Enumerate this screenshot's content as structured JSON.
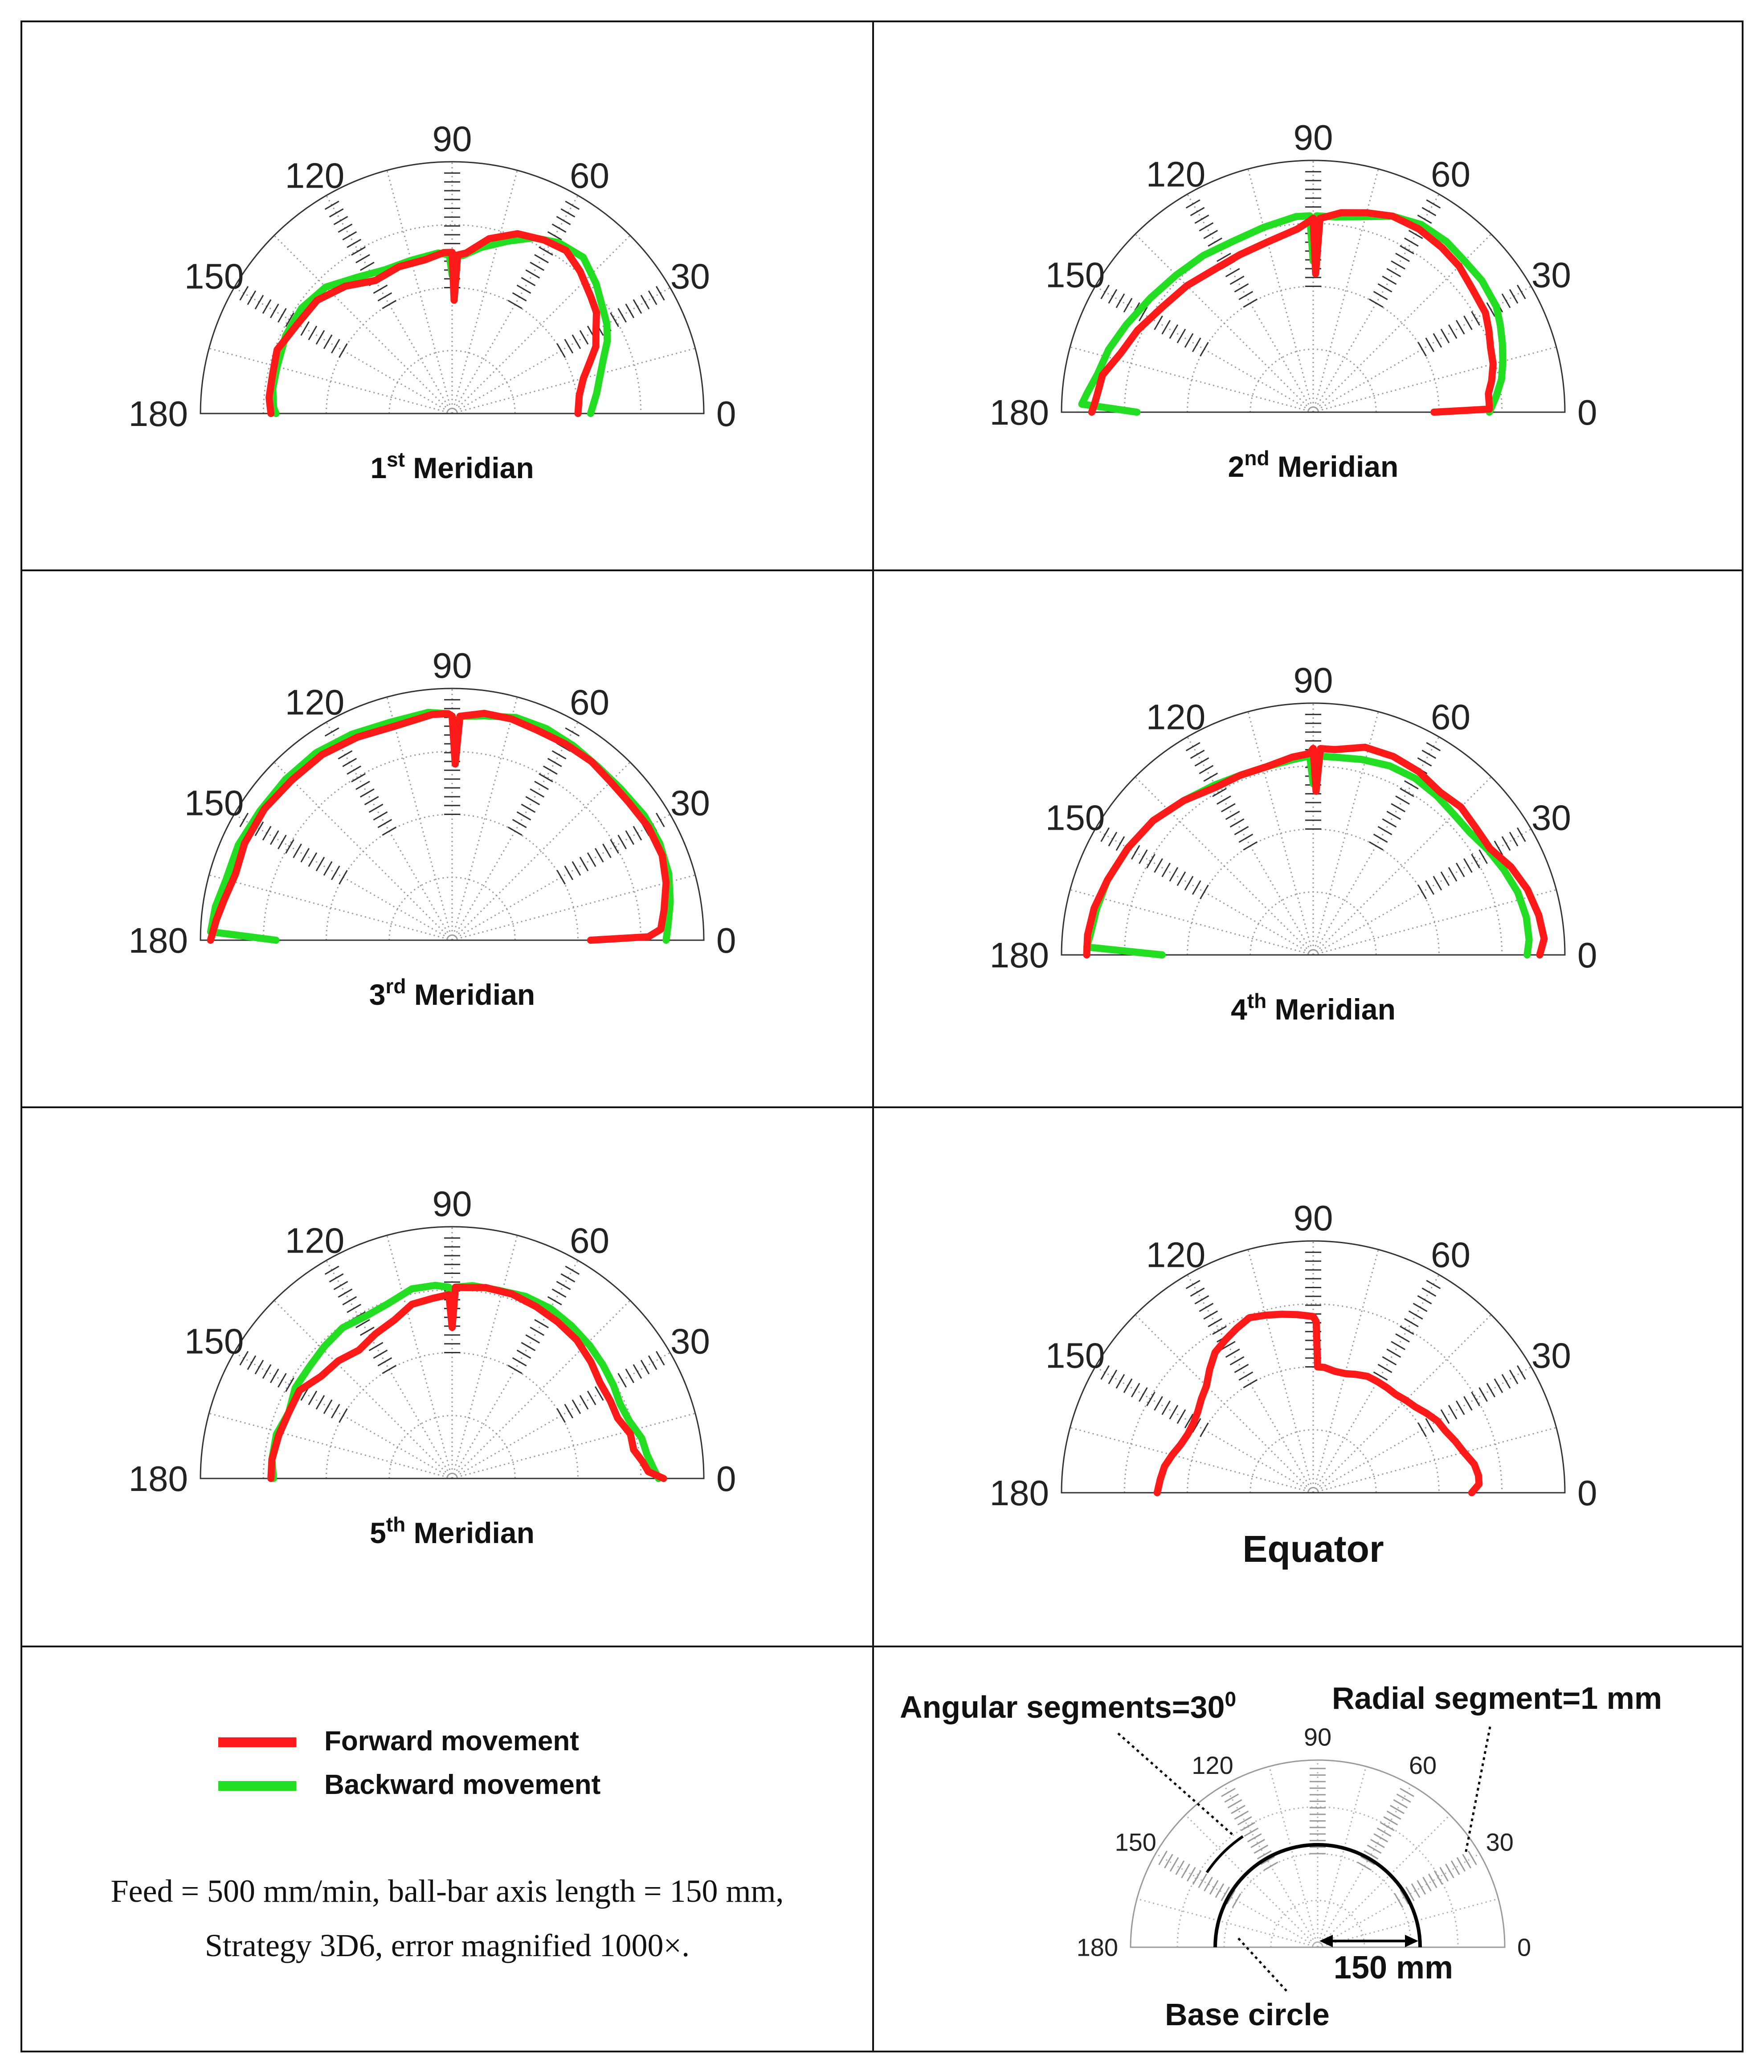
{
  "angle_labels": [
    "0",
    "30",
    "60",
    "90",
    "120",
    "150",
    "180"
  ],
  "colors": {
    "forward": "#ff1a1a",
    "backward": "#22dd22",
    "grid": "#9a9a9a",
    "frame": "#111111"
  },
  "chart_data": [
    {
      "type": "polar-line",
      "title_main": "1",
      "title_sup": "st",
      "title_rest": " Meridian",
      "theta_range": [
        0,
        180
      ],
      "r_range": [
        0,
        1
      ],
      "series": [
        {
          "name": "Forward movement",
          "theta": [
            0,
            8,
            15,
            20,
            25,
            30,
            35,
            40,
            48,
            55,
            62,
            70,
            78,
            85,
            88,
            89,
            90,
            91,
            93,
            100,
            110,
            120,
            130,
            140,
            150,
            160,
            168,
            175,
            180
          ],
          "r": [
            0.5,
            0.51,
            0.54,
            0.58,
            0.63,
            0.66,
            0.7,
            0.72,
            0.76,
            0.79,
            0.78,
            0.76,
            0.71,
            0.64,
            0.63,
            0.45,
            0.64,
            0.64,
            0.64,
            0.62,
            0.62,
            0.61,
            0.66,
            0.7,
            0.71,
            0.74,
            0.73,
            0.73,
            0.72
          ]
        },
        {
          "name": "Backward movement",
          "theta": [
            0,
            8,
            15,
            20,
            25,
            30,
            35,
            42,
            50,
            58,
            65,
            72,
            80,
            86,
            89,
            90,
            91,
            95,
            105,
            115,
            125,
            135,
            145,
            155,
            165,
            172,
            178,
            180
          ],
          "r": [
            0.55,
            0.58,
            0.61,
            0.64,
            0.68,
            0.71,
            0.73,
            0.77,
            0.81,
            0.8,
            0.77,
            0.72,
            0.67,
            0.63,
            0.62,
            0.55,
            0.63,
            0.64,
            0.63,
            0.63,
            0.66,
            0.71,
            0.73,
            0.73,
            0.72,
            0.72,
            0.71,
            0.7
          ]
        }
      ]
    },
    {
      "type": "polar-line",
      "title_main": "2",
      "title_sup": "nd",
      "title_rest": " Meridian",
      "theta_range": [
        0,
        180
      ],
      "r_range": [
        0,
        1
      ],
      "series": [
        {
          "name": "Forward movement",
          "theta": [
            0,
            1,
            3,
            6,
            10,
            15,
            20,
            25,
            30,
            38,
            45,
            52,
            60,
            68,
            75,
            82,
            88,
            89,
            90,
            91,
            95,
            105,
            115,
            125,
            135,
            145,
            155,
            163,
            170,
            175,
            178,
            180
          ],
          "r": [
            0.48,
            0.7,
            0.7,
            0.7,
            0.72,
            0.74,
            0.75,
            0.77,
            0.79,
            0.8,
            0.82,
            0.83,
            0.84,
            0.84,
            0.82,
            0.8,
            0.77,
            0.55,
            0.77,
            0.76,
            0.73,
            0.7,
            0.69,
            0.69,
            0.71,
            0.73,
            0.77,
            0.8,
            0.85,
            0.86,
            0.87,
            0.88
          ]
        },
        {
          "name": "Backward movement",
          "theta": [
            0,
            5,
            10,
            15,
            20,
            25,
            30,
            38,
            45,
            52,
            60,
            68,
            76,
            84,
            89,
            90,
            91,
            95,
            105,
            115,
            125,
            135,
            145,
            155,
            163,
            170,
            175,
            178,
            180
          ],
          "r": [
            0.7,
            0.73,
            0.76,
            0.78,
            0.8,
            0.82,
            0.84,
            0.85,
            0.85,
            0.86,
            0.86,
            0.84,
            0.8,
            0.78,
            0.78,
            0.6,
            0.78,
            0.78,
            0.76,
            0.75,
            0.76,
            0.77,
            0.79,
            0.82,
            0.85,
            0.87,
            0.9,
            0.92,
            0.7
          ]
        }
      ]
    },
    {
      "type": "polar-line",
      "title_main": "3",
      "title_sup": "rd",
      "title_rest": " Meridian",
      "theta_range": [
        0,
        180
      ],
      "r_range": [
        0,
        1
      ],
      "series": [
        {
          "name": "Forward movement",
          "theta": [
            0,
            1,
            3,
            8,
            15,
            22,
            30,
            38,
            45,
            52,
            60,
            68,
            75,
            82,
            88,
            89,
            90,
            91,
            95,
            105,
            115,
            125,
            135,
            145,
            155,
            163,
            170,
            175,
            180
          ],
          "r": [
            0.55,
            0.78,
            0.83,
            0.85,
            0.88,
            0.9,
            0.9,
            0.89,
            0.89,
            0.9,
            0.9,
            0.9,
            0.91,
            0.91,
            0.89,
            0.7,
            0.89,
            0.9,
            0.9,
            0.88,
            0.89,
            0.9,
            0.9,
            0.91,
            0.91,
            0.9,
            0.92,
            0.94,
            0.96
          ]
        },
        {
          "name": "Backward movement",
          "theta": [
            0,
            4,
            10,
            17,
            25,
            33,
            42,
            50,
            58,
            66,
            74,
            82,
            88,
            89,
            90,
            91,
            96,
            106,
            116,
            126,
            136,
            146,
            156,
            165,
            172,
            178,
            180
          ],
          "r": [
            0.85,
            0.86,
            0.88,
            0.9,
            0.91,
            0.91,
            0.9,
            0.9,
            0.91,
            0.92,
            0.92,
            0.9,
            0.89,
            0.75,
            0.89,
            0.9,
            0.91,
            0.9,
            0.91,
            0.92,
            0.92,
            0.92,
            0.93,
            0.93,
            0.95,
            0.96,
            0.7
          ]
        }
      ]
    },
    {
      "type": "polar-line",
      "title_main": "4",
      "title_sup": "th",
      "title_rest": " Meridian",
      "theta_range": [
        0,
        180
      ],
      "r_range": [
        0,
        1
      ],
      "series": [
        {
          "name": "Forward movement",
          "theta": [
            0,
            4,
            10,
            17,
            24,
            31,
            38,
            45,
            52,
            60,
            68,
            76,
            84,
            88,
            89,
            90,
            91,
            96,
            104,
            112,
            120,
            130,
            140,
            150,
            160,
            168,
            175,
            180
          ],
          "r": [
            0.9,
            0.92,
            0.91,
            0.89,
            0.86,
            0.82,
            0.82,
            0.83,
            0.82,
            0.84,
            0.85,
            0.85,
            0.82,
            0.82,
            0.65,
            0.82,
            0.8,
            0.79,
            0.77,
            0.77,
            0.77,
            0.8,
            0.83,
            0.85,
            0.87,
            0.89,
            0.9,
            0.9
          ]
        },
        {
          "name": "Backward movement",
          "theta": [
            0,
            4,
            10,
            17,
            24,
            31,
            38,
            45,
            52,
            60,
            68,
            76,
            84,
            89,
            90,
            91,
            96,
            104,
            112,
            120,
            130,
            140,
            150,
            160,
            168,
            175,
            178,
            180
          ],
          "r": [
            0.85,
            0.86,
            0.86,
            0.85,
            0.83,
            0.81,
            0.79,
            0.79,
            0.8,
            0.81,
            0.81,
            0.8,
            0.79,
            0.79,
            0.68,
            0.79,
            0.78,
            0.77,
            0.77,
            0.78,
            0.8,
            0.83,
            0.85,
            0.87,
            0.88,
            0.89,
            0.9,
            0.6
          ]
        }
      ]
    },
    {
      "type": "polar-line",
      "title_main": "5",
      "title_sup": "th",
      "title_rest": " Meridian",
      "theta_range": [
        0,
        180
      ],
      "r_range": [
        0,
        1
      ],
      "series": [
        {
          "name": "Forward movement",
          "theta": [
            0,
            2,
            5,
            9,
            14,
            20,
            26,
            33,
            40,
            48,
            56,
            64,
            72,
            80,
            86,
            89,
            90,
            91,
            96,
            103,
            110,
            118,
            126,
            134,
            142,
            150,
            158,
            166,
            174,
            180
          ],
          "r": [
            0.84,
            0.78,
            0.76,
            0.73,
            0.73,
            0.7,
            0.7,
            0.7,
            0.72,
            0.74,
            0.75,
            0.76,
            0.77,
            0.77,
            0.76,
            0.76,
            0.6,
            0.73,
            0.72,
            0.71,
            0.67,
            0.65,
            0.63,
            0.65,
            0.66,
            0.7,
            0.7,
            0.71,
            0.72,
            0.72
          ]
        },
        {
          "name": "Backward movement",
          "theta": [
            0,
            3,
            7,
            12,
            18,
            24,
            30,
            37,
            44,
            52,
            60,
            68,
            76,
            84,
            89,
            90,
            91,
            95,
            102,
            110,
            118,
            126,
            134,
            142,
            150,
            158,
            166,
            174,
            180
          ],
          "r": [
            0.82,
            0.8,
            0.78,
            0.77,
            0.74,
            0.73,
            0.74,
            0.75,
            0.76,
            0.77,
            0.78,
            0.78,
            0.77,
            0.77,
            0.76,
            0.66,
            0.76,
            0.77,
            0.77,
            0.74,
            0.73,
            0.74,
            0.73,
            0.72,
            0.72,
            0.7,
            0.72,
            0.72,
            0.71
          ]
        }
      ]
    },
    {
      "type": "polar-line",
      "title_main": "Equator",
      "title_sup": "",
      "title_rest": "",
      "theta_range": [
        0,
        180
      ],
      "r_range": [
        0,
        1
      ],
      "series": [
        {
          "name": "Forward movement",
          "theta": [
            0,
            3,
            6,
            10,
            15,
            20,
            25,
            30,
            35,
            40,
            45,
            50,
            55,
            60,
            65,
            70,
            75,
            80,
            85,
            88,
            89,
            90,
            95,
            100,
            105,
            110,
            115,
            120,
            125,
            130,
            135,
            140,
            145,
            150,
            155,
            160,
            165,
            170,
            175,
            180
          ],
          "r": [
            0.63,
            0.66,
            0.66,
            0.65,
            0.62,
            0.6,
            0.58,
            0.57,
            0.55,
            0.53,
            0.52,
            0.51,
            0.51,
            0.51,
            0.51,
            0.5,
            0.49,
            0.49,
            0.5,
            0.5,
            0.68,
            0.7,
            0.71,
            0.72,
            0.73,
            0.74,
            0.72,
            0.7,
            0.68,
            0.64,
            0.6,
            0.58,
            0.56,
            0.55,
            0.55,
            0.56,
            0.58,
            0.6,
            0.61,
            0.62
          ]
        }
      ]
    },
    {
      "type": "polar-explanation",
      "labels": {
        "angular": "Angular segments=30",
        "angular_sup": "0",
        "radial": "Radial segment=1 mm",
        "length": "150 mm",
        "base": "Base circle"
      }
    }
  ],
  "legend": {
    "forward": "Forward movement",
    "backward": "Backward movement"
  },
  "caption": {
    "line1": "Feed = 500 mm/min, ball-bar axis length = 150 mm,",
    "line2": "Strategy 3D6, error magnified 1000×."
  }
}
